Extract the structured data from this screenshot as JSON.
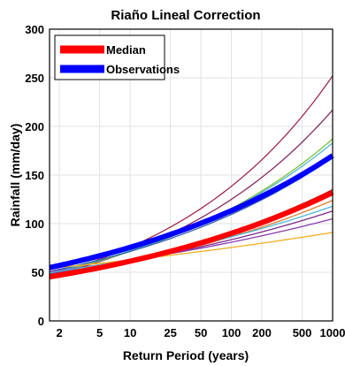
{
  "chart_data": {
    "type": "line",
    "title": "Riaño Lineal Correction",
    "xlabel": "Return Period (years)",
    "ylabel": "Rainfall (mm/day)",
    "xscale": "log",
    "xlim": [
      1.6,
      1000
    ],
    "ylim": [
      0,
      300
    ],
    "x_ticks": [
      2,
      5,
      10,
      25,
      50,
      100,
      200,
      500,
      1000
    ],
    "y_ticks": [
      0,
      50,
      100,
      150,
      200,
      250,
      300
    ],
    "grid": true,
    "legend": {
      "position": "top-left",
      "entries": [
        {
          "label": "Median",
          "color": "#ff0000"
        },
        {
          "label": "Observations",
          "color": "#0000ff"
        }
      ]
    },
    "series": [
      {
        "color": "#a0284a",
        "y_at_2": 50,
        "y_at_1000": 252,
        "width": 1.3
      },
      {
        "color": "#8a2a60",
        "y_at_2": 49,
        "y_at_1000": 217,
        "width": 1.3
      },
      {
        "color": "#7bbf3a",
        "y_at_2": 51,
        "y_at_1000": 187,
        "width": 1.3
      },
      {
        "color": "#4fb8d8",
        "y_at_2": 52,
        "y_at_1000": 183,
        "width": 1.3
      },
      {
        "color": "#2c5fa8",
        "y_at_2": 53,
        "y_at_1000": 168,
        "width": 1.3
      },
      {
        "color": "#a12e2e",
        "y_at_2": 48,
        "y_at_1000": 135,
        "width": 1.3
      },
      {
        "color": "#e07a2e",
        "y_at_2": 47,
        "y_at_1000": 124,
        "width": 1.3
      },
      {
        "color": "#7a2a8a",
        "y_at_2": 50,
        "y_at_1000": 113,
        "width": 1.3
      },
      {
        "color": "#8a3ab0",
        "y_at_2": 52,
        "y_at_1000": 105,
        "width": 1.3
      },
      {
        "color": "#4fb8d8",
        "y_at_2": 51,
        "y_at_1000": 118,
        "width": 1.3
      },
      {
        "color": "#f0b020",
        "y_at_2": 55,
        "y_at_1000": 91,
        "width": 1.3
      },
      {
        "name": "Median",
        "color": "#ff0000",
        "y_at_2": 47,
        "y_at_1000": 132,
        "width": 6
      },
      {
        "name": "Observations",
        "color": "#0000ff",
        "y_at_2": 57,
        "y_at_1000": 170,
        "width": 6
      }
    ]
  }
}
